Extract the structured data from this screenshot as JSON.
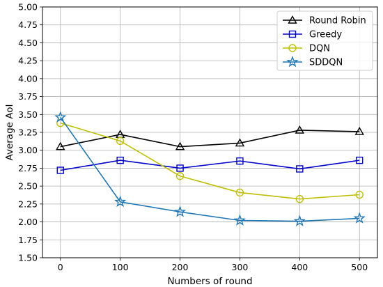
{
  "chart_data": {
    "type": "line",
    "title": "",
    "xlabel": "Numbers of round",
    "ylabel": "Average AoI",
    "x": [
      0,
      100,
      200,
      300,
      400,
      500
    ],
    "xlim": [
      -30,
      530
    ],
    "ylim": [
      1.5,
      5.0
    ],
    "xticks": [
      "0",
      "100",
      "200",
      "300",
      "400",
      "500"
    ],
    "yticks": [
      "1.50",
      "1.75",
      "2.00",
      "2.25",
      "2.50",
      "2.75",
      "3.00",
      "3.25",
      "3.50",
      "3.75",
      "4.00",
      "4.25",
      "4.50",
      "4.75",
      "5.00"
    ],
    "grid": true,
    "legend_position": "top-right",
    "series": [
      {
        "name": "Round Robin",
        "color": "#000000",
        "marker": "triangle",
        "values": [
          3.05,
          3.22,
          3.05,
          3.1,
          3.28,
          3.26
        ]
      },
      {
        "name": "Greedy",
        "color": "#0000cc",
        "marker": "square",
        "values": [
          2.72,
          2.86,
          2.75,
          2.85,
          2.74,
          2.86
        ]
      },
      {
        "name": "DQN",
        "color": "#bfbf00",
        "marker": "circle",
        "values": [
          3.38,
          3.13,
          2.64,
          2.41,
          2.32,
          2.38
        ]
      },
      {
        "name": "SDDQN",
        "color": "#1f77b4",
        "marker": "star",
        "values": [
          3.46,
          2.28,
          2.14,
          2.02,
          2.01,
          2.05
        ]
      }
    ]
  }
}
